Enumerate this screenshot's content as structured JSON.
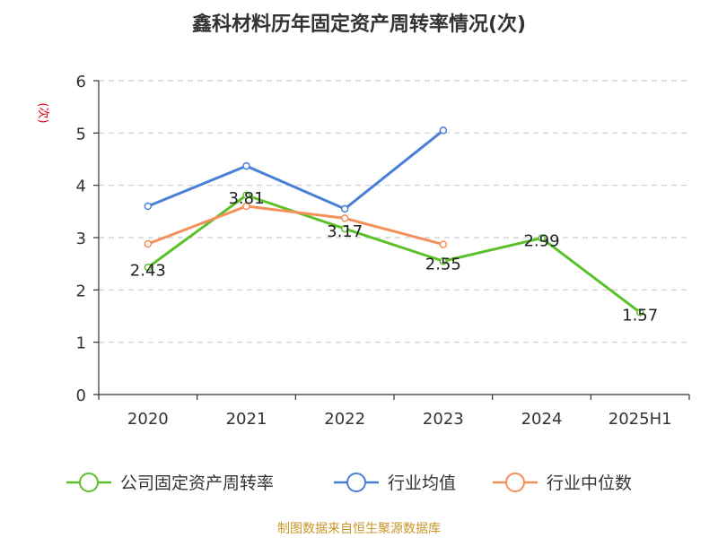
{
  "chart_data": {
    "type": "line",
    "title": "鑫科材料历年固定资产周转率情况(次)",
    "ylabel": "(次)",
    "xlabel": "",
    "categories": [
      "2020",
      "2021",
      "2022",
      "2023",
      "2024",
      "2025H1"
    ],
    "ylim": [
      0,
      6
    ],
    "yticks": [
      "0",
      "1",
      "2",
      "3",
      "4",
      "5",
      "6"
    ],
    "grid": true,
    "legend_position": "bottom",
    "series": [
      {
        "name": "公司固定资产周转率",
        "color": "#5cc02a",
        "values": [
          2.43,
          3.81,
          3.17,
          2.55,
          2.99,
          1.57
        ],
        "labels": [
          "2.43",
          "3.81",
          "3.17",
          "2.55",
          "2.99",
          "1.57"
        ]
      },
      {
        "name": "行业均值",
        "color": "#4a7fd8",
        "values": [
          3.6,
          4.37,
          3.55,
          5.05,
          null,
          null
        ]
      },
      {
        "name": "行业中位数",
        "color": "#f4905a",
        "values": [
          2.88,
          3.6,
          3.37,
          2.87,
          null,
          null
        ]
      }
    ]
  },
  "source": "制图数据来自恒生聚源数据库"
}
